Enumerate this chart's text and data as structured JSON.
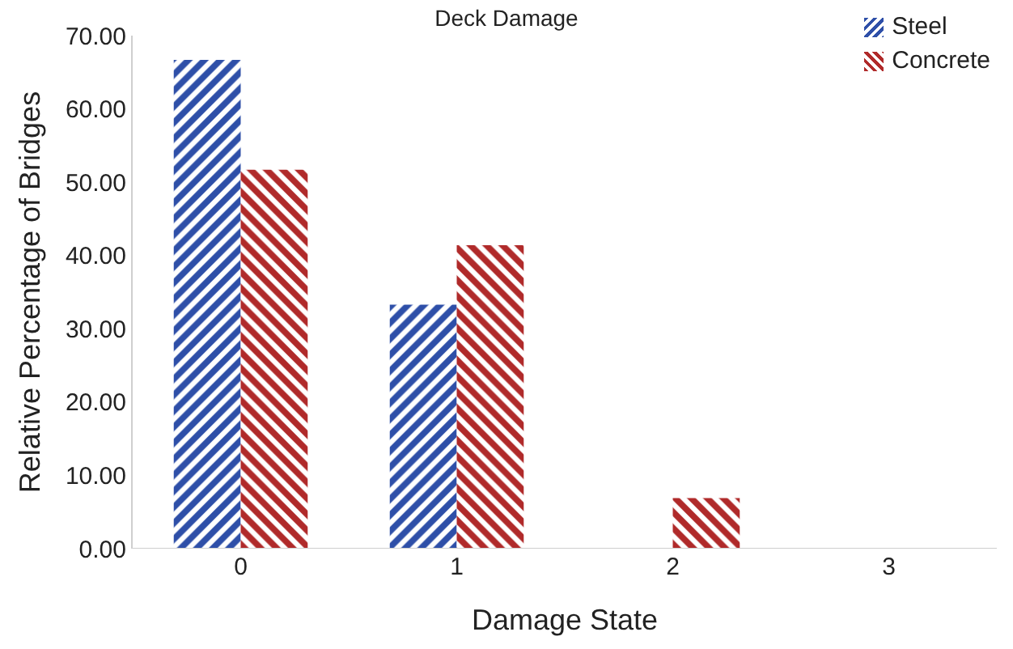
{
  "chart_data": {
    "type": "bar",
    "title": "Deck Damage",
    "xlabel": "Damage State",
    "ylabel": "Relative Percentage of Bridges",
    "categories": [
      "0",
      "1",
      "2",
      "3"
    ],
    "series": [
      {
        "name": "Steel",
        "color": "#2e4fa8",
        "values": [
          66.7,
          33.3,
          0,
          0
        ]
      },
      {
        "name": "Concrete",
        "color": "#b02a2a",
        "values": [
          51.7,
          41.4,
          6.9,
          0
        ]
      }
    ],
    "ylim": [
      0,
      70
    ],
    "yticks": [
      {
        "value": 0,
        "label": "0.00"
      },
      {
        "value": 10,
        "label": "10.00"
      },
      {
        "value": 20,
        "label": "20.00"
      },
      {
        "value": 30,
        "label": "30.00"
      },
      {
        "value": 40,
        "label": "40.00"
      },
      {
        "value": 50,
        "label": "50.00"
      },
      {
        "value": 60,
        "label": "60.00"
      },
      {
        "value": 70,
        "label": "70.00"
      }
    ],
    "grid": false,
    "legend": "top right"
  }
}
